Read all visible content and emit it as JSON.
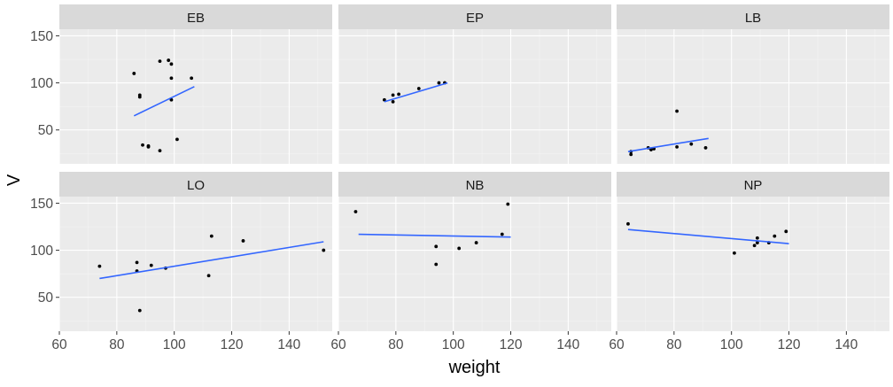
{
  "chart_data": {
    "type": "scatter",
    "title": "",
    "xlabel": "weight",
    "ylabel": "V",
    "xlim": [
      60,
      155
    ],
    "ylim": [
      14,
      157
    ],
    "x_ticks": [
      60,
      80,
      100,
      120,
      140
    ],
    "y_ticks": [
      50,
      100,
      150
    ],
    "grid": true,
    "colors": {
      "panel_bg": "#EBEBEB",
      "strip_bg": "#D9D9D9",
      "grid_major": "#FFFFFF",
      "point": "#000000",
      "fit_line": "#3366FF"
    },
    "facets": [
      {
        "label": "EB",
        "points": [
          [
            86,
            110
          ],
          [
            88,
            87
          ],
          [
            88,
            85
          ],
          [
            89,
            34
          ],
          [
            91,
            33
          ],
          [
            91,
            32
          ],
          [
            95,
            123
          ],
          [
            95,
            28
          ],
          [
            98,
            124
          ],
          [
            99,
            120
          ],
          [
            99,
            105
          ],
          [
            99,
            82
          ],
          [
            101,
            40
          ],
          [
            106,
            105
          ]
        ],
        "fit": [
          [
            86,
            65
          ],
          [
            107,
            96
          ]
        ]
      },
      {
        "label": "EP",
        "points": [
          [
            76,
            82
          ],
          [
            79,
            87
          ],
          [
            79,
            80
          ],
          [
            81,
            88
          ],
          [
            88,
            94
          ],
          [
            95,
            100
          ],
          [
            97,
            100
          ]
        ],
        "fit": [
          [
            76,
            80
          ],
          [
            98,
            100
          ]
        ]
      },
      {
        "label": "LB",
        "points": [
          [
            65,
            24
          ],
          [
            65,
            27
          ],
          [
            71,
            31
          ],
          [
            72,
            29
          ],
          [
            73,
            30
          ],
          [
            81,
            70
          ],
          [
            81,
            32
          ],
          [
            86,
            35
          ],
          [
            91,
            31
          ]
        ],
        "fit": [
          [
            64,
            27
          ],
          [
            92,
            41
          ]
        ]
      },
      {
        "label": "LO",
        "points": [
          [
            74,
            83
          ],
          [
            87,
            78
          ],
          [
            87,
            87
          ],
          [
            88,
            36
          ],
          [
            92,
            84
          ],
          [
            97,
            81
          ],
          [
            112,
            73
          ],
          [
            113,
            115
          ],
          [
            124,
            110
          ],
          [
            152,
            100
          ]
        ],
        "fit": [
          [
            74,
            70
          ],
          [
            152,
            109
          ]
        ]
      },
      {
        "label": "NB",
        "points": [
          [
            66,
            141
          ],
          [
            94,
            104
          ],
          [
            94,
            85
          ],
          [
            102,
            102
          ],
          [
            108,
            108
          ],
          [
            117,
            117
          ],
          [
            119,
            149
          ]
        ],
        "fit": [
          [
            67,
            117
          ],
          [
            120,
            114
          ]
        ]
      },
      {
        "label": "NP",
        "points": [
          [
            64,
            128
          ],
          [
            101,
            97
          ],
          [
            108,
            105
          ],
          [
            109,
            108
          ],
          [
            109,
            113
          ],
          [
            113,
            108
          ],
          [
            115,
            115
          ],
          [
            119,
            120
          ]
        ],
        "fit": [
          [
            64,
            122
          ],
          [
            120,
            107
          ]
        ]
      }
    ]
  }
}
